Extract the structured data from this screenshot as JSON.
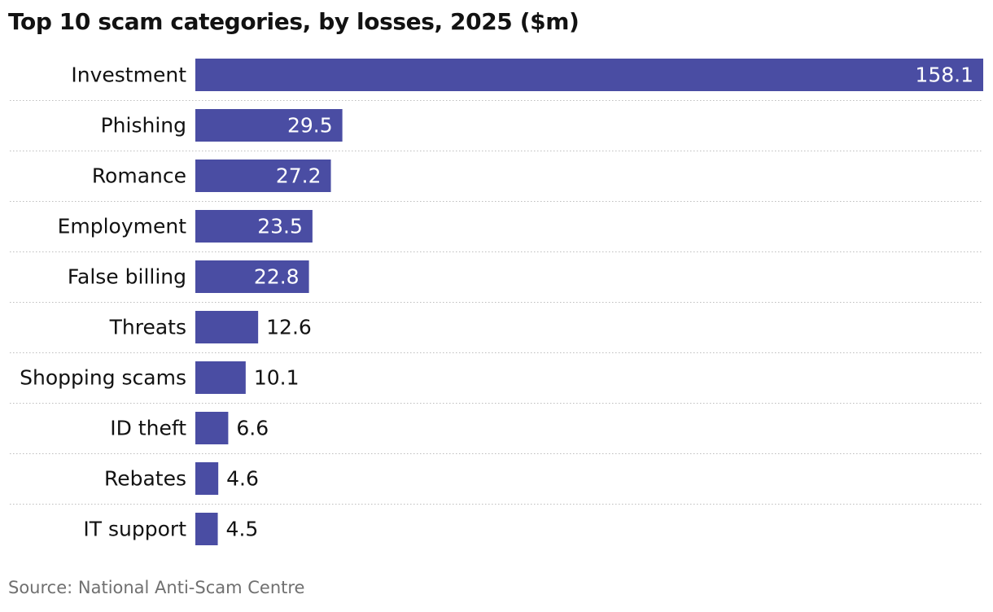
{
  "chart_data": {
    "type": "bar",
    "orientation": "horizontal",
    "title": "Top 10 scam categories, by losses, 2025 ($m)",
    "categories": [
      "Investment",
      "Phishing",
      "Romance",
      "Employment",
      "False billing",
      "Threats",
      "Shopping scams",
      "ID theft",
      "Rebates",
      "IT support"
    ],
    "values": [
      158.1,
      29.5,
      27.2,
      23.5,
      22.8,
      12.6,
      10.1,
      6.6,
      4.6,
      4.5
    ],
    "value_labels": [
      "158.1",
      "29.5",
      "27.2",
      "23.5",
      "22.8",
      "12.6",
      "10.1",
      "6.6",
      "4.6",
      "4.5"
    ],
    "xlim": [
      0,
      158.1
    ],
    "grid": false,
    "row_separators": "dotted",
    "colors": {
      "bar": "#4a4da3",
      "label_inside": "#ffffff",
      "label_outside": "#121212",
      "separator": "#bdbdbd"
    }
  },
  "source": "Source: National Anti-Scam Centre"
}
